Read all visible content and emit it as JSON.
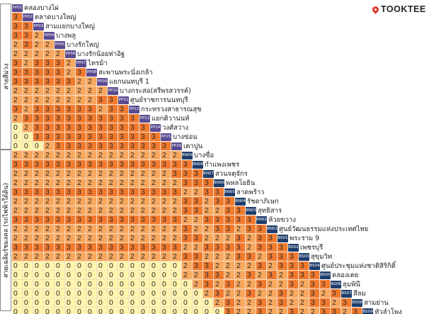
{
  "brand": {
    "name": "TOOKTEE",
    "icon": "map-pin-icon",
    "color": "#e03c31"
  },
  "lines": [
    {
      "key": "purple",
      "label": "สายสีม่วง",
      "color": "#5a4a8f"
    },
    {
      "key": "blue",
      "label": "สายเฉลิมรัชมงคล (รถไฟฟ้าใต้ดิน)",
      "color": "#1f3d6b"
    }
  ],
  "fare_colors": {
    "0": "#fff5ad",
    "2": "#f9a85e",
    "3": "#f27a2e"
  },
  "stations": [
    {
      "code": "PP01",
      "name": "คลองบางไผ่",
      "line": "purple",
      "fares": []
    },
    {
      "code": "PP02",
      "name": "ตลาดบางใหญ่",
      "line": "purple",
      "fares": [
        3
      ]
    },
    {
      "code": "PP03",
      "name": "สามแยกบางใหญ่",
      "line": "purple",
      "fares": [
        3,
        3
      ]
    },
    {
      "code": "PP04",
      "name": "บางพลู",
      "line": "purple",
      "fares": [
        3,
        3,
        2
      ]
    },
    {
      "code": "PP05",
      "name": "บางรักใหญ่",
      "line": "purple",
      "fares": [
        2,
        3,
        2,
        2
      ]
    },
    {
      "code": "PP06",
      "name": "บางรักน้อยท่าอิฐ",
      "line": "purple",
      "fares": [
        2,
        2,
        2,
        2,
        2
      ]
    },
    {
      "code": "PP07",
      "name": "ไทรม้า",
      "line": "purple",
      "fares": [
        3,
        2,
        3,
        3,
        3,
        2
      ]
    },
    {
      "code": "PP08",
      "name": "สะพานพระนั่งเกล้า",
      "line": "purple",
      "fares": [
        3,
        3,
        3,
        3,
        3,
        2,
        3
      ]
    },
    {
      "code": "PP09",
      "name": "แยกนนทบุรี 1",
      "line": "purple",
      "fares": [
        3,
        3,
        3,
        3,
        3,
        3,
        2,
        2
      ]
    },
    {
      "code": "PP10",
      "name": "บางกระสอ(สรีพรสวรรค์)",
      "line": "purple",
      "fares": [
        2,
        2,
        2,
        2,
        2,
        2,
        2,
        2,
        2
      ]
    },
    {
      "code": "PP11",
      "name": "ศูนย์ราชการนนทบุรี",
      "line": "purple",
      "fares": [
        2,
        2,
        2,
        2,
        2,
        2,
        2,
        2,
        3,
        3
      ]
    },
    {
      "code": "PP12",
      "name": "กระทรวงสาธารณสุข",
      "line": "purple",
      "fares": [
        3,
        2,
        3,
        3,
        3,
        3,
        3,
        3,
        2,
        3,
        3
      ]
    },
    {
      "code": "PP13",
      "name": "แยกติวานนท์",
      "line": "purple",
      "fares": [
        2,
        3,
        3,
        3,
        3,
        3,
        3,
        3,
        3,
        3,
        3,
        3
      ]
    },
    {
      "code": "PP14",
      "name": "วงศ์สว่าง",
      "line": "purple",
      "fares": [
        0,
        2,
        3,
        3,
        3,
        3,
        3,
        3,
        3,
        3,
        3,
        3,
        3
      ]
    },
    {
      "code": "PP15",
      "name": "บางซ่อน",
      "line": "purple",
      "fares": [
        0,
        0,
        3,
        3,
        3,
        3,
        3,
        3,
        3,
        3,
        3,
        3,
        3,
        3
      ]
    },
    {
      "code": "PP16",
      "name": "เตาปูน",
      "line": "purple",
      "fares": [
        0,
        0,
        0,
        2,
        3,
        3,
        3,
        3,
        3,
        3,
        3,
        3,
        3,
        3,
        3
      ]
    },
    {
      "code": "BN09",
      "name": "บางซื่อ",
      "line": "blue",
      "fares": [
        2,
        2,
        2,
        2,
        2,
        2,
        2,
        2,
        2,
        2,
        2,
        2,
        2,
        2,
        2,
        2
      ]
    },
    {
      "code": "BN08",
      "name": "กำแพงเพชร",
      "line": "blue",
      "fares": [
        3,
        3,
        3,
        3,
        3,
        3,
        3,
        3,
        3,
        3,
        3,
        3,
        3,
        3,
        3,
        3,
        3
      ]
    },
    {
      "code": "BN07",
      "name": "สวนจตุจักร",
      "line": "blue",
      "fares": [
        2,
        2,
        2,
        2,
        2,
        2,
        2,
        2,
        2,
        2,
        2,
        2,
        2,
        2,
        2,
        3,
        3,
        3
      ]
    },
    {
      "code": "BN06",
      "name": "พหลโยธิน",
      "line": "blue",
      "fares": [
        2,
        2,
        2,
        2,
        2,
        2,
        2,
        2,
        2,
        2,
        2,
        2,
        2,
        2,
        2,
        2,
        3,
        3,
        3
      ]
    },
    {
      "code": "BN05",
      "name": "ลาดพร้าว",
      "line": "blue",
      "fares": [
        3,
        3,
        3,
        3,
        3,
        3,
        3,
        3,
        3,
        3,
        3,
        3,
        3,
        3,
        3,
        3,
        2,
        2,
        3,
        3
      ]
    },
    {
      "code": "BN04",
      "name": "รัชดาภิเษก",
      "line": "blue",
      "fares": [
        2,
        2,
        2,
        2,
        2,
        2,
        2,
        2,
        2,
        2,
        2,
        2,
        2,
        2,
        2,
        2,
        3,
        3,
        2,
        3,
        3
      ]
    },
    {
      "code": "BN03",
      "name": "สุทธิสาร",
      "line": "blue",
      "fares": [
        2,
        2,
        2,
        2,
        2,
        2,
        2,
        2,
        2,
        2,
        2,
        2,
        2,
        2,
        2,
        2,
        3,
        3,
        2,
        2,
        3,
        3
      ]
    },
    {
      "code": "BN02",
      "name": "ห้วยขวาง",
      "line": "blue",
      "fares": [
        3,
        3,
        3,
        3,
        3,
        3,
        3,
        3,
        3,
        3,
        3,
        3,
        3,
        3,
        3,
        3,
        2,
        2,
        3,
        3,
        3,
        3,
        3
      ]
    },
    {
      "code": "BN01",
      "name": "ศูนย์วัฒนธรรมแห่งประเทศไทย",
      "line": "blue",
      "fares": [
        2,
        2,
        2,
        2,
        2,
        2,
        2,
        2,
        2,
        2,
        2,
        2,
        2,
        2,
        2,
        2,
        3,
        2,
        2,
        3,
        3,
        2,
        3,
        3
      ]
    },
    {
      "code": "BS01",
      "name": "พระราม 9",
      "line": "blue",
      "fares": [
        2,
        2,
        2,
        2,
        2,
        2,
        2,
        2,
        2,
        2,
        2,
        2,
        2,
        2,
        2,
        2,
        3,
        3,
        2,
        2,
        2,
        3,
        2,
        3,
        3
      ]
    },
    {
      "code": "BS02",
      "name": "เพชรบุรี",
      "line": "blue",
      "fares": [
        3,
        3,
        3,
        3,
        3,
        3,
        3,
        3,
        3,
        3,
        3,
        3,
        3,
        3,
        3,
        3,
        2,
        2,
        3,
        3,
        3,
        3,
        2,
        3,
        3,
        3
      ]
    },
    {
      "code": "BS03",
      "name": "สุขุมวิท",
      "line": "blue",
      "fares": [
        2,
        2,
        2,
        2,
        2,
        2,
        2,
        2,
        2,
        2,
        2,
        2,
        2,
        2,
        2,
        2,
        3,
        3,
        2,
        2,
        2,
        3,
        3,
        2,
        3,
        3,
        3
      ]
    },
    {
      "code": "BS04",
      "name": "ศูนย์ประชุมแห่งชาติสิริกิติ์",
      "line": "blue",
      "fares": [
        0,
        0,
        0,
        0,
        0,
        0,
        0,
        0,
        0,
        0,
        0,
        0,
        0,
        0,
        0,
        0,
        2,
        3,
        3,
        2,
        2,
        2,
        2,
        3,
        2,
        3,
        3,
        3
      ]
    },
    {
      "code": "BS05",
      "name": "คลองเตย",
      "line": "blue",
      "fares": [
        0,
        0,
        0,
        0,
        0,
        0,
        0,
        0,
        0,
        0,
        0,
        0,
        0,
        0,
        0,
        0,
        2,
        2,
        3,
        3,
        2,
        2,
        3,
        2,
        3,
        2,
        3,
        3,
        3
      ]
    },
    {
      "code": "BS06",
      "name": "ลุมพินี",
      "line": "blue",
      "fares": [
        0,
        0,
        0,
        0,
        0,
        0,
        0,
        0,
        0,
        0,
        0,
        0,
        0,
        0,
        0,
        0,
        0,
        2,
        3,
        2,
        3,
        2,
        2,
        3,
        2,
        2,
        3,
        2,
        3,
        3
      ]
    },
    {
      "code": "BS07",
      "name": "สีลม",
      "line": "blue",
      "fares": [
        0,
        0,
        0,
        0,
        0,
        0,
        0,
        0,
        0,
        0,
        0,
        0,
        0,
        0,
        0,
        0,
        0,
        0,
        2,
        3,
        2,
        2,
        3,
        2,
        2,
        3,
        2,
        2,
        3,
        2,
        3
      ]
    },
    {
      "code": "BS08",
      "name": "สามย่าน",
      "line": "blue",
      "fares": [
        0,
        0,
        0,
        0,
        0,
        0,
        0,
        0,
        0,
        0,
        0,
        0,
        0,
        0,
        0,
        0,
        0,
        0,
        0,
        2,
        3,
        2,
        2,
        3,
        2,
        3,
        2,
        2,
        3,
        3,
        2,
        3
      ]
    },
    {
      "code": "BS09",
      "name": "หัวลำโพง",
      "line": "blue",
      "fares": [
        0,
        0,
        0,
        0,
        0,
        0,
        0,
        0,
        0,
        0,
        0,
        0,
        0,
        0,
        0,
        0,
        0,
        0,
        0,
        0,
        3,
        2,
        2,
        3,
        2,
        2,
        3,
        2,
        2,
        3,
        3,
        2,
        3
      ]
    }
  ]
}
